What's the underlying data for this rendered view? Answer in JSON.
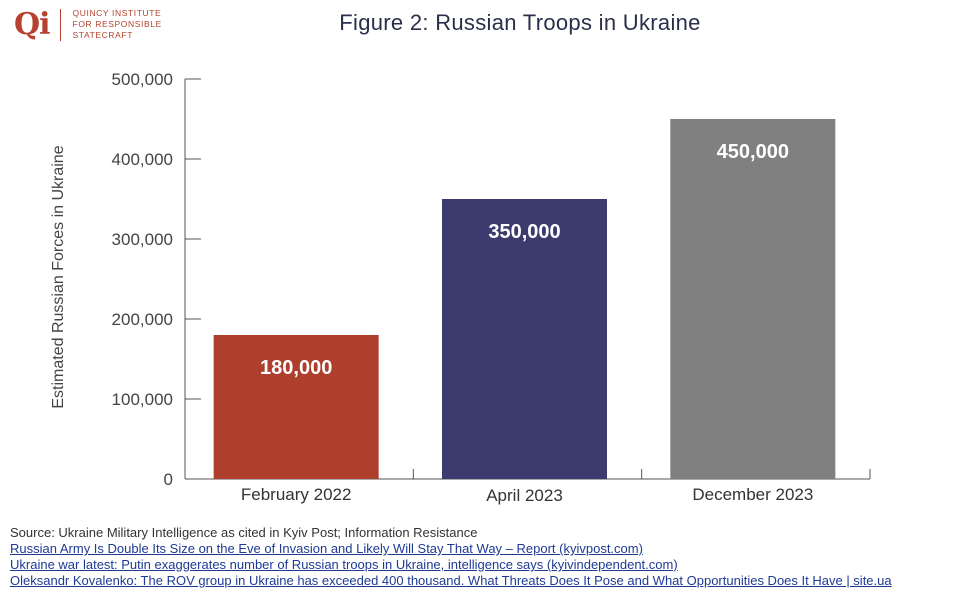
{
  "logo": {
    "mark": "Qi",
    "lines": [
      "QUINCY INSTITUTE",
      "FOR RESPONSIBLE",
      "STATECRAFT"
    ]
  },
  "chart_data": {
    "type": "bar",
    "title": "Figure 2: Russian Troops in Ukraine",
    "xlabel": "",
    "ylabel": "Estimated Russian Forces in Ukraine",
    "categories": [
      "February 2022",
      "April 2023",
      "December 2023"
    ],
    "values": [
      180000,
      350000,
      450000
    ],
    "data_labels": [
      "180,000",
      "350,000",
      "450,000"
    ],
    "bar_colors": [
      "#ad3f2c",
      "#3c3b6e",
      "#808080"
    ],
    "ylim": [
      0,
      500000
    ],
    "yticks": [
      0,
      100000,
      200000,
      300000,
      400000,
      500000
    ],
    "ytick_labels": [
      "0",
      "100,000",
      "200,000",
      "300,000",
      "400,000",
      "500,000"
    ],
    "grid": false,
    "legend": "none"
  },
  "source": {
    "text": "Source: Ukraine Military Intelligence as cited in Kyiv Post; Information Resistance",
    "links": [
      "Russian Army Is Double Its Size on the Eve of Invasion and Likely Will Stay That Way – Report (kyivpost.com)",
      "Ukraine war latest: Putin exaggerates number of Russian troops in Ukraine, intelligence says (kyivindependent.com)",
      "Oleksandr Kovalenko: The ROV group in Ukraine has exceeded 400 thousand. What Threats Does It Pose and What Opportunities Does It Have | site.ua"
    ]
  }
}
